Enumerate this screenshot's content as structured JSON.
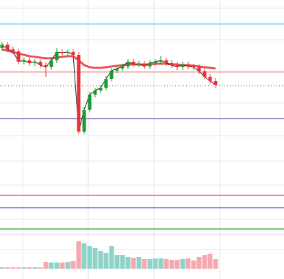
{
  "chart_data": {
    "type": "candlestick",
    "ylim": [
      0,
      340
    ],
    "open": [
      270,
      275,
      268,
      265,
      250,
      252,
      248,
      250,
      245,
      242,
      252,
      264,
      263,
      264,
      260,
      148,
      180,
      202,
      208,
      212,
      225,
      237,
      240,
      243,
      250,
      246,
      247,
      243,
      248,
      250,
      252,
      248,
      245,
      242,
      246,
      243,
      242,
      236,
      228,
      222
    ],
    "high": [
      279,
      279,
      272,
      269,
      256,
      256,
      254,
      254,
      249,
      256,
      270,
      268,
      268,
      268,
      264,
      184,
      206,
      212,
      216,
      229,
      241,
      244,
      247,
      254,
      254,
      251,
      251,
      252,
      254,
      258,
      256,
      252,
      249,
      250,
      250,
      247,
      246,
      240,
      232,
      226
    ],
    "low": [
      266,
      264,
      261,
      246,
      246,
      244,
      244,
      241,
      228,
      238,
      248,
      259,
      259,
      256,
      144,
      144,
      176,
      198,
      204,
      208,
      221,
      233,
      236,
      239,
      242,
      242,
      239,
      239,
      244,
      246,
      244,
      241,
      238,
      238,
      239,
      238,
      232,
      224,
      218,
      212
    ],
    "close": [
      275,
      268,
      265,
      250,
      252,
      248,
      250,
      245,
      242,
      252,
      264,
      263,
      264,
      260,
      148,
      180,
      202,
      208,
      212,
      225,
      237,
      240,
      243,
      250,
      246,
      247,
      243,
      248,
      250,
      252,
      248,
      245,
      242,
      246,
      243,
      242,
      236,
      228,
      222,
      216
    ],
    "up_color": "#1a9a2a",
    "down_color": "#e8303a",
    "moving_average": {
      "color": "#e8303a",
      "values": [
        268,
        266,
        264,
        262,
        260,
        258,
        257,
        256,
        255,
        255,
        256,
        257,
        258,
        258,
        252,
        245,
        242,
        241,
        241,
        242,
        243,
        244,
        245,
        246,
        246,
        246,
        246,
        246,
        247,
        247,
        247,
        246,
        246,
        245,
        245,
        244,
        243,
        242,
        241,
        240
      ]
    },
    "levels": [
      {
        "value": 305,
        "color": "#5bc8f0",
        "style": "solid"
      },
      {
        "value": 235,
        "color": "#f08a8a",
        "style": "solid"
      },
      {
        "value": 215,
        "color": "#c83a3a",
        "style": "dotted"
      },
      {
        "value": 167,
        "color": "#6a3fb5",
        "style": "solid"
      },
      {
        "value": 55,
        "color": "#e04040",
        "style": "solid"
      },
      {
        "value": 37,
        "color": "#7a3fb0",
        "style": "solid"
      },
      {
        "value": 6,
        "color": "#2a9a2a",
        "style": "solid"
      }
    ],
    "volume": {
      "ylim": [
        0,
        50
      ],
      "up_color": "#8fd3c8",
      "down_color": "#f4a8b0",
      "values": [
        2,
        2,
        2,
        2,
        2,
        2,
        2,
        2,
        10,
        9,
        9,
        9,
        10,
        11,
        40,
        37,
        33,
        30,
        26,
        23,
        33,
        20,
        20,
        17,
        16,
        17,
        14,
        14,
        15,
        15,
        14,
        13,
        13,
        14,
        15,
        12,
        17,
        20,
        22,
        14
      ]
    }
  }
}
